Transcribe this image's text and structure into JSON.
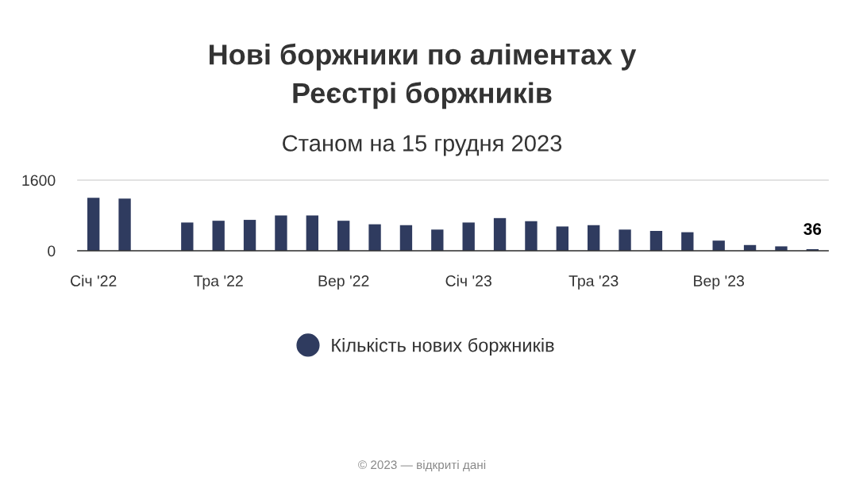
{
  "chart_data": {
    "type": "bar",
    "title": "Нові боржники по аліментах у\nРеєстрі боржників",
    "subtitle": "Станом на 15 грудня 2023",
    "categories": [
      "Січ '22",
      null,
      null,
      null,
      "Тра '22",
      null,
      null,
      null,
      "Вер '22",
      null,
      null,
      null,
      "Січ '23",
      null,
      null,
      null,
      "Тра '23",
      null,
      null,
      null,
      "Вер '23",
      null,
      null,
      null
    ],
    "series": [
      {
        "name": "Кількість нових боржників",
        "color": "#2f3b5f",
        "values": [
          1200,
          1180,
          null,
          640,
          680,
          700,
          800,
          800,
          680,
          600,
          580,
          480,
          640,
          740,
          670,
          550,
          580,
          480,
          450,
          420,
          230,
          130,
          100,
          36
        ],
        "value_labels": [
          null,
          null,
          null,
          null,
          null,
          null,
          null,
          null,
          null,
          null,
          null,
          null,
          null,
          null,
          null,
          null,
          null,
          null,
          null,
          null,
          null,
          null,
          null,
          "36"
        ]
      }
    ],
    "ylim": [
      0,
      1600
    ],
    "yticks": [
      0,
      1600
    ],
    "grid": "y",
    "legend": "bottom",
    "marker": "circle",
    "annotations": [
      "© 2023 — відкриті дані"
    ]
  }
}
